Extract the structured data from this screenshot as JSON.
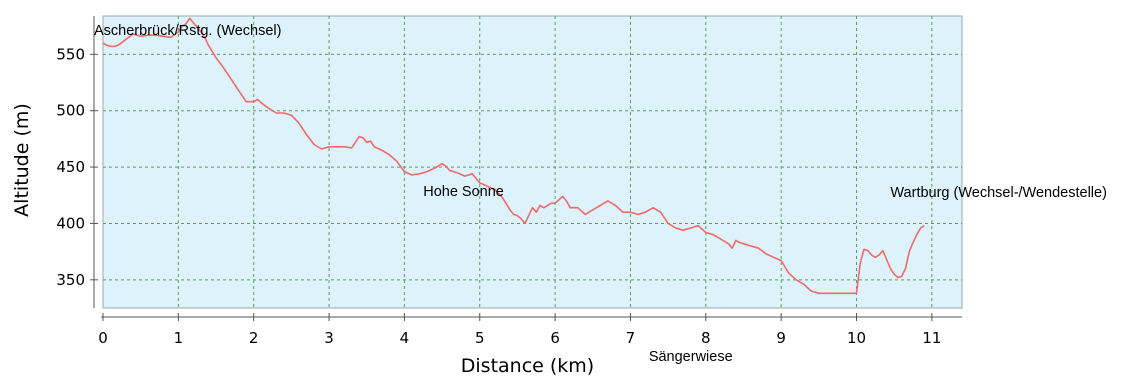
{
  "chart_data": {
    "type": "line",
    "title": "",
    "xlabel": "Distance (km)",
    "ylabel": "Altitude (m)",
    "xlim": [
      0,
      11.4
    ],
    "ylim": [
      325,
      584
    ],
    "xticks": [
      0,
      1,
      2,
      3,
      4,
      5,
      6,
      7,
      8,
      9,
      10,
      11
    ],
    "yticks": [
      350,
      400,
      450,
      500,
      550
    ],
    "grid": true,
    "colors": {
      "plot_background": "#ddf2fb",
      "grid": "#5aa05a",
      "line": "#f06a6a",
      "axis": "#555555"
    },
    "series": [
      {
        "x": [
          0.0,
          0.05,
          0.1,
          0.15,
          0.2,
          0.3,
          0.4,
          0.5,
          0.6,
          0.7,
          0.8,
          0.9,
          1.0,
          1.05,
          1.1,
          1.15,
          1.2,
          1.25,
          1.3,
          1.35,
          1.4,
          1.5,
          1.6,
          1.7,
          1.8,
          1.9,
          2.0,
          2.05,
          2.1,
          2.2,
          2.3,
          2.4,
          2.5,
          2.6,
          2.7,
          2.8,
          2.9,
          3.0,
          3.1,
          3.2,
          3.3,
          3.4,
          3.45,
          3.5,
          3.55,
          3.6,
          3.7,
          3.8,
          3.9,
          4.0,
          4.1,
          4.2,
          4.3,
          4.4,
          4.5,
          4.55,
          4.6,
          4.7,
          4.8,
          4.9,
          5.0,
          5.1,
          5.2,
          5.3,
          5.4,
          5.45,
          5.5,
          5.55,
          5.6,
          5.7,
          5.75,
          5.8,
          5.85,
          5.9,
          5.95,
          6.0,
          6.05,
          6.1,
          6.15,
          6.2,
          6.3,
          6.4,
          6.5,
          6.6,
          6.7,
          6.8,
          6.9,
          7.0,
          7.1,
          7.2,
          7.3,
          7.4,
          7.5,
          7.6,
          7.7,
          7.8,
          7.9,
          8.0,
          8.1,
          8.2,
          8.3,
          8.35,
          8.4,
          8.45,
          8.5,
          8.6,
          8.7,
          8.8,
          8.9,
          9.0,
          9.1,
          9.2,
          9.3,
          9.4,
          9.5,
          9.6,
          9.7,
          9.8,
          9.9,
          10.0,
          10.05,
          10.1,
          10.15,
          10.2,
          10.25,
          10.3,
          10.35,
          10.4,
          10.45,
          10.5,
          10.55,
          10.6,
          10.65,
          10.7,
          10.75,
          10.8,
          10.85,
          10.9
        ],
        "y": [
          560,
          558,
          557,
          557,
          558,
          563,
          568,
          566,
          567,
          567,
          566,
          565,
          570,
          575,
          577,
          582,
          578,
          574,
          570,
          565,
          558,
          547,
          538,
          528,
          518,
          508,
          508,
          510,
          507,
          502,
          498,
          498,
          496,
          489,
          479,
          470,
          466,
          468,
          468,
          468,
          467,
          477,
          476,
          472,
          473,
          468,
          465,
          461,
          455,
          446,
          443,
          444,
          446,
          449,
          453,
          451,
          447,
          445,
          442,
          444,
          436,
          433,
          430,
          423,
          412,
          408,
          407,
          404,
          400,
          414,
          410,
          416,
          414,
          416,
          418,
          418,
          421,
          424,
          420,
          414,
          414,
          408,
          412,
          416,
          420,
          416,
          410,
          410,
          408,
          410,
          414,
          410,
          400,
          396,
          394,
          396,
          398,
          392,
          390,
          386,
          382,
          378,
          385,
          383,
          382,
          380,
          378,
          373,
          370,
          367,
          356,
          350,
          346,
          340,
          338,
          338,
          338,
          338,
          338,
          338,
          365,
          377,
          376,
          372,
          370,
          372,
          376,
          368,
          360,
          355,
          352,
          353,
          360,
          375,
          383,
          390,
          396,
          398
        ]
      }
    ],
    "annotations": [
      {
        "text": "Ascherbrück/Rstg. (Wechsel)",
        "x": 0.0,
        "anchor": "start",
        "place": "top"
      },
      {
        "text": "Hohe Sonne",
        "x": 4.25,
        "anchor": "start",
        "place": "inside"
      },
      {
        "text": "Wartburg (Wechsel-/Wendestelle)",
        "x": 10.45,
        "anchor": "start",
        "place": "inside"
      },
      {
        "text": "Sängerwiese",
        "x": 7.8,
        "anchor": "middle",
        "place": "below-axis"
      }
    ]
  }
}
